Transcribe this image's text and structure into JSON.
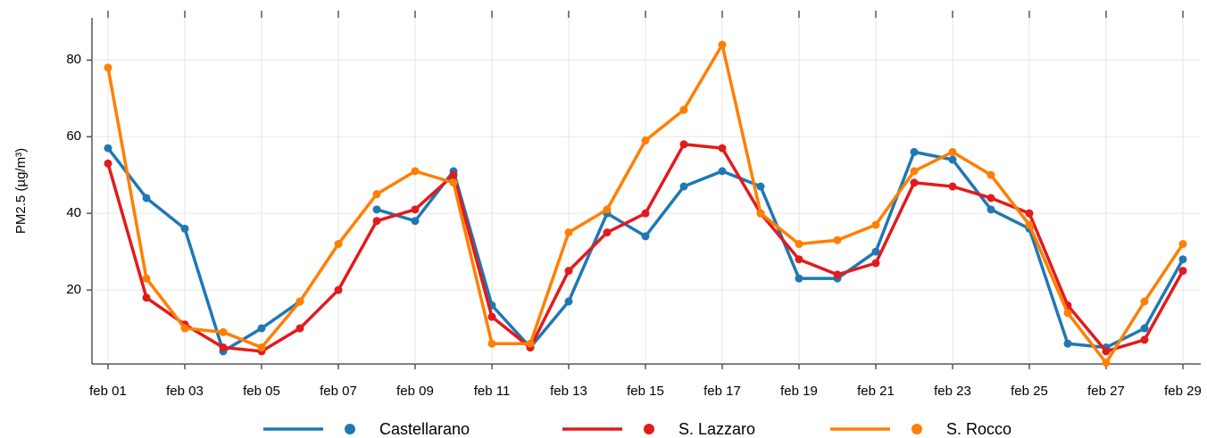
{
  "chart_data": {
    "type": "line",
    "y_label": "PM2.5 (µg/m³)",
    "categories": [
      "feb 01",
      null,
      "feb 03",
      null,
      "feb 05",
      null,
      "feb 07",
      null,
      "feb 09",
      null,
      "feb 11",
      null,
      "feb 13",
      null,
      "feb 15",
      null,
      "feb 17",
      null,
      "feb 19",
      null,
      "feb 21",
      null,
      "feb 23",
      null,
      "feb 25",
      null,
      "feb 27",
      null,
      "feb 29"
    ],
    "series": [
      {
        "name": "Castellarano",
        "color": "#1f78b4",
        "values": [
          57,
          44,
          36,
          4,
          10,
          17,
          null,
          41,
          38,
          51,
          16,
          5,
          17,
          40,
          34,
          47,
          51,
          47,
          23,
          23,
          30,
          56,
          54,
          41,
          36,
          6,
          5,
          10,
          28
        ]
      },
      {
        "name": "S. Lazzaro",
        "color": "#e31a1c",
        "values": [
          53,
          18,
          11,
          5,
          4,
          10,
          20,
          38,
          41,
          50,
          13,
          5,
          25,
          35,
          40,
          58,
          57,
          40,
          28,
          24,
          27,
          48,
          47,
          44,
          40,
          16,
          4,
          7,
          25
        ]
      },
      {
        "name": "S. Rocco",
        "color": "#ff7f00",
        "values": [
          78,
          23,
          10,
          9,
          5,
          17,
          32,
          45,
          51,
          48,
          6,
          6,
          35,
          41,
          59,
          67,
          84,
          40,
          32,
          33,
          37,
          51,
          56,
          50,
          37,
          14,
          1,
          17,
          32
        ]
      }
    ],
    "ylim": [
      0.7,
      91
    ],
    "yticks": [
      20,
      40,
      60,
      80
    ],
    "grid": true,
    "legend": "bottom"
  }
}
